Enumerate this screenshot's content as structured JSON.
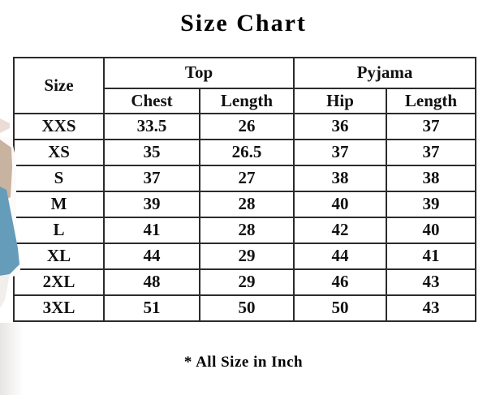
{
  "page": {
    "title": "Size Chart",
    "footnote": "* All Size in Inch"
  },
  "colors": {
    "background": "#ffffff",
    "text": "#111111",
    "table_border": "#2b2b2b",
    "photo_blue": "#649cba",
    "photo_tan": "#c8b3a0",
    "photo_pink": "#ecdcd6",
    "bottom_shade": "#e3e1df"
  },
  "table": {
    "corner_label": "Size",
    "group_headers": [
      {
        "label": "Top",
        "span": 2
      },
      {
        "label": "Pyjama",
        "span": 2
      }
    ],
    "column_headers": [
      "Chest",
      "Length",
      "Hip",
      "Length"
    ],
    "rows": [
      {
        "size": "XXS",
        "values": [
          "33.5",
          "26",
          "36",
          "37"
        ]
      },
      {
        "size": "XS",
        "values": [
          "35",
          "26.5",
          "37",
          "37"
        ]
      },
      {
        "size": "S",
        "values": [
          "37",
          "27",
          "38",
          "38"
        ]
      },
      {
        "size": "M",
        "values": [
          "39",
          "28",
          "40",
          "39"
        ]
      },
      {
        "size": "L",
        "values": [
          "41",
          "28",
          "42",
          "40"
        ]
      },
      {
        "size": "XL",
        "values": [
          "44",
          "29",
          "44",
          "41"
        ]
      },
      {
        "size": "2XL",
        "values": [
          "48",
          "29",
          "46",
          "43"
        ]
      },
      {
        "size": "3XL",
        "values": [
          "51",
          "50",
          "50",
          "43"
        ]
      }
    ]
  }
}
